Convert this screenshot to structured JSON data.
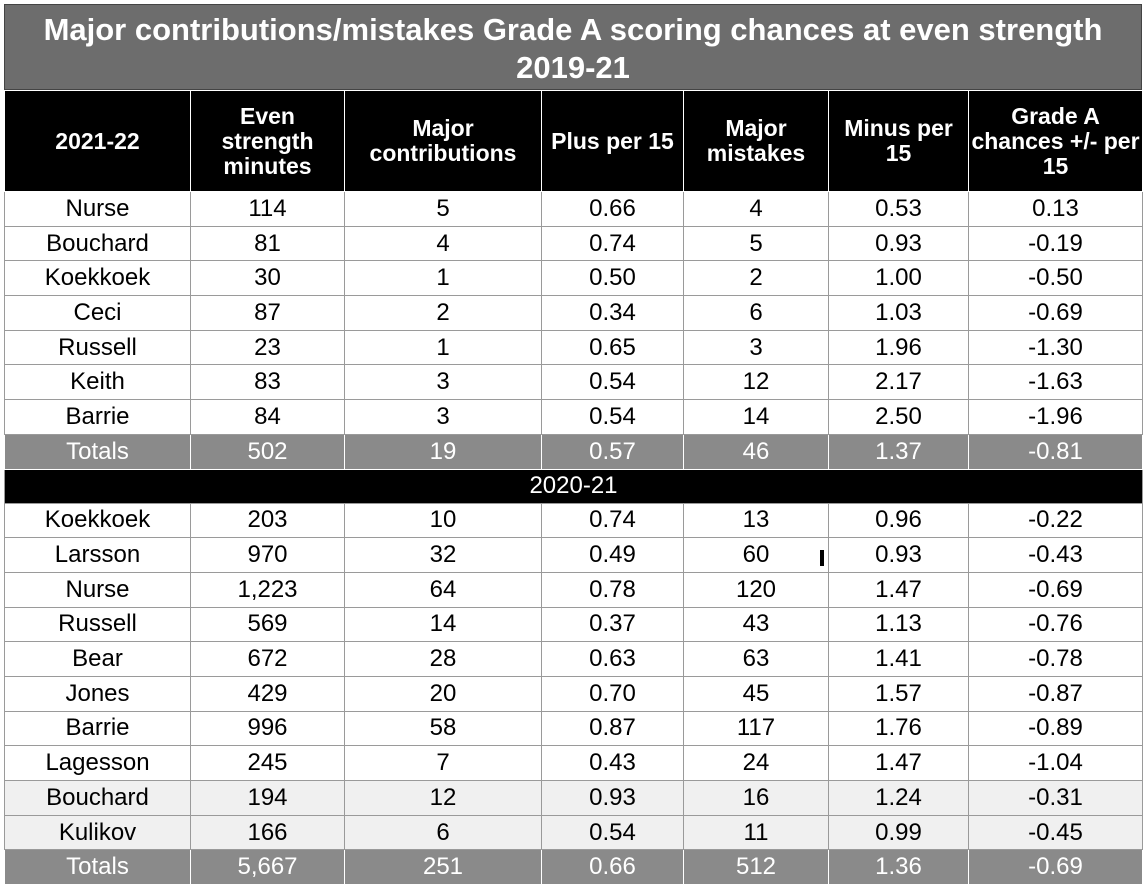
{
  "chart_data": {
    "type": "table",
    "title": "Major contributions/mistakes Grade A scoring chances at even strength 2019-21",
    "columns": [
      "2021-22",
      "Even strength minutes",
      "Major contributions",
      "Plus per 15",
      "Major mistakes",
      "Minus per 15",
      "Grade A chances +/- per 15"
    ],
    "sections": [
      {
        "label": "",
        "rows": [
          [
            "Nurse",
            "114",
            "5",
            "0.66",
            "4",
            "0.53",
            "0.13"
          ],
          [
            "Bouchard",
            "81",
            "4",
            "0.74",
            "5",
            "0.93",
            "-0.19"
          ],
          [
            "Koekkoek",
            "30",
            "1",
            "0.50",
            "2",
            "1.00",
            "-0.50"
          ],
          [
            "Ceci",
            "87",
            "2",
            "0.34",
            "6",
            "1.03",
            "-0.69"
          ],
          [
            "Russell",
            "23",
            "1",
            "0.65",
            "3",
            "1.96",
            "-1.30"
          ],
          [
            "Keith",
            "83",
            "3",
            "0.54",
            "12",
            "2.17",
            "-1.63"
          ],
          [
            "Barrie",
            "84",
            "3",
            "0.54",
            "14",
            "2.50",
            "-1.96"
          ]
        ],
        "totals": [
          "Totals",
          "502",
          "19",
          "0.57",
          "46",
          "1.37",
          "-0.81"
        ]
      },
      {
        "label": "2020-21",
        "rows": [
          [
            "Koekkoek",
            "203",
            "10",
            "0.74",
            "13",
            "0.96",
            "-0.22"
          ],
          [
            "Larsson",
            "970",
            "32",
            "0.49",
            "60",
            "0.93",
            "-0.43"
          ],
          [
            "Nurse",
            "1,223",
            "64",
            "0.78",
            "120",
            "1.47",
            "-0.69"
          ],
          [
            "Russell",
            "569",
            "14",
            "0.37",
            "43",
            "1.13",
            "-0.76"
          ],
          [
            "Bear",
            "672",
            "28",
            "0.63",
            "63",
            "1.41",
            "-0.78"
          ],
          [
            "Jones",
            "429",
            "20",
            "0.70",
            "45",
            "1.57",
            "-0.87"
          ],
          [
            "Barrie",
            "996",
            "58",
            "0.87",
            "117",
            "1.76",
            "-0.89"
          ],
          [
            "Lagesson",
            "245",
            "7",
            "0.43",
            "24",
            "1.47",
            "-1.04"
          ],
          [
            "Bouchard",
            "194",
            "12",
            "0.93",
            "16",
            "1.24",
            "-0.31"
          ],
          [
            "Kulikov",
            "166",
            "6",
            "0.54",
            "11",
            "0.99",
            "-0.45"
          ]
        ],
        "alt_rows": [
          8,
          9
        ],
        "totals": [
          "Totals",
          "5,667",
          "251",
          "0.66",
          "512",
          "1.36",
          "-0.69"
        ]
      }
    ]
  }
}
